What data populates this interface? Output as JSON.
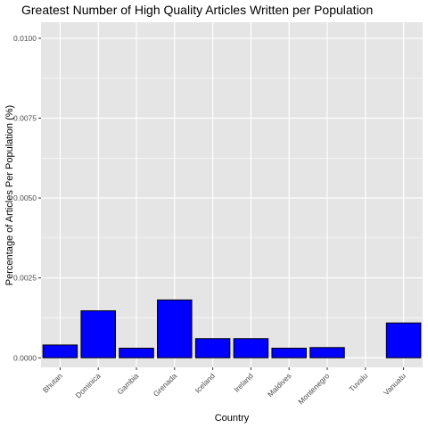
{
  "chart_data": {
    "type": "bar",
    "title": "Greatest Number of High Quality Articles Written per Population",
    "xlabel": "Country",
    "ylabel": "Percentage of Articles Per Population (%)",
    "categories": [
      "Bhutan",
      "Dominica",
      "Gambia",
      "Grenada",
      "Iceland",
      "Ireland",
      "Maldives",
      "Montenegro",
      "Tuvalu",
      "Vanuatu"
    ],
    "values": [
      0.0004,
      0.00147,
      0.0003,
      0.00181,
      0.0006,
      0.0006,
      0.0003,
      0.00032,
      0.0,
      0.00109
    ],
    "yticks": [
      "0.0000",
      "0.0025",
      "0.0050",
      "0.0075",
      "0.0100"
    ],
    "ytick_values": [
      0,
      0.0025,
      0.005,
      0.0075,
      0.01
    ],
    "ylim": [
      -0.0003,
      0.0105
    ],
    "bar_color": "#0000ff",
    "bar_outline": "#000000",
    "panel_background": "#e5e5e5",
    "grid_color": "#ffffff",
    "grid": true,
    "legend": "none"
  }
}
